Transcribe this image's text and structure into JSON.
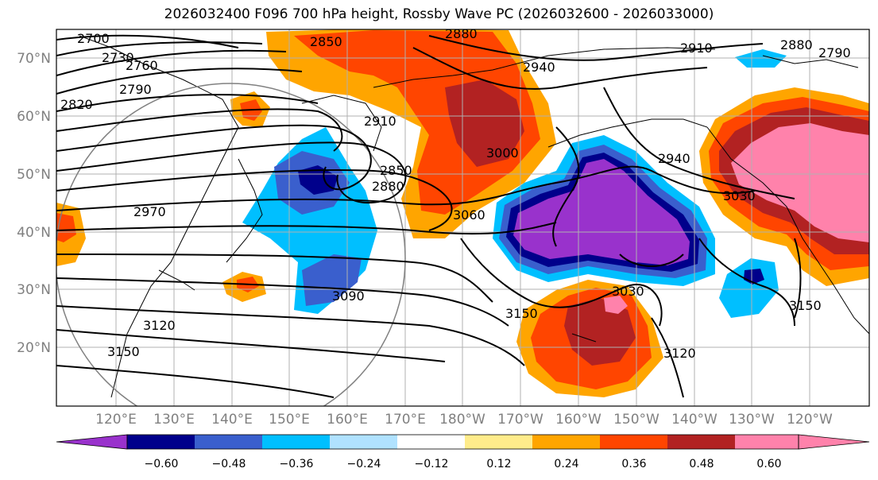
{
  "title": "2026032400 F096 700 hPa height, Rossby Wave PC (2026032600 - 2026033000)",
  "lat_labels": [
    "70°N",
    "60°N",
    "50°N",
    "40°N",
    "30°N",
    "20°N"
  ],
  "lon_labels": [
    "120°E",
    "130°E",
    "140°E",
    "150°E",
    "160°E",
    "170°E",
    "180°W",
    "170°W",
    "160°W",
    "150°W",
    "140°W",
    "130°W",
    "120°W"
  ],
  "height_contour_labels": [
    "2700",
    "2730",
    "2760",
    "2790",
    "2820",
    "2850",
    "2880",
    "2910",
    "2940",
    "2850",
    "2880",
    "2910",
    "3000",
    "2940",
    "3030",
    "2970",
    "3060",
    "3090",
    "3120",
    "3150",
    "3150",
    "3030",
    "3120",
    "3150",
    "2880",
    "2790"
  ],
  "colorbar": {
    "ticks": [
      "−0.60",
      "−0.48",
      "−0.36",
      "−0.24",
      "−0.12",
      "0.12",
      "0.24",
      "0.36",
      "0.48",
      "0.60"
    ],
    "colors": [
      "#9932cc",
      "#00008b",
      "#3a5fcd",
      "#00bfff",
      "#b0e2ff",
      "#ffffff",
      "#ffec8b",
      "#ffa500",
      "#ff4500",
      "#b22222",
      "#ff82ab"
    ]
  },
  "colors": {
    "coast": "#000000",
    "grid": "#b0b0b0",
    "axis_label": "#808080",
    "contour": "#000000"
  }
}
